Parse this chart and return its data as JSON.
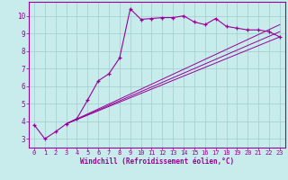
{
  "main_x": [
    0,
    1,
    2,
    3,
    4,
    5,
    6,
    7,
    8,
    9,
    10,
    11,
    12,
    13,
    14,
    15,
    16,
    17,
    18,
    19,
    20,
    21,
    22,
    23
  ],
  "main_y": [
    3.8,
    3.0,
    3.4,
    3.85,
    4.15,
    5.2,
    6.3,
    6.7,
    7.6,
    10.4,
    9.8,
    9.85,
    9.9,
    9.9,
    10.0,
    9.65,
    9.5,
    9.85,
    9.4,
    9.3,
    9.2,
    9.2,
    9.1,
    8.8
  ],
  "line1_x": [
    3,
    23
  ],
  "line1_y": [
    3.85,
    8.8
  ],
  "line2_x": [
    3,
    23
  ],
  "line2_y": [
    3.85,
    9.1
  ],
  "line3_x": [
    3,
    23
  ],
  "line3_y": [
    3.85,
    9.5
  ],
  "color": "#990099",
  "bg_color": "#c8ecec",
  "grid_color": "#a0cccc",
  "xlabel": "Windchill (Refroidissement éolien,°C)",
  "xlim": [
    -0.5,
    23.5
  ],
  "ylim": [
    2.5,
    10.8
  ],
  "xticks": [
    0,
    1,
    2,
    3,
    4,
    5,
    6,
    7,
    8,
    9,
    10,
    11,
    12,
    13,
    14,
    15,
    16,
    17,
    18,
    19,
    20,
    21,
    22,
    23
  ],
  "yticks": [
    3,
    4,
    5,
    6,
    7,
    8,
    9,
    10
  ],
  "tick_fontsize": 5.0,
  "xlabel_fontsize": 5.5
}
